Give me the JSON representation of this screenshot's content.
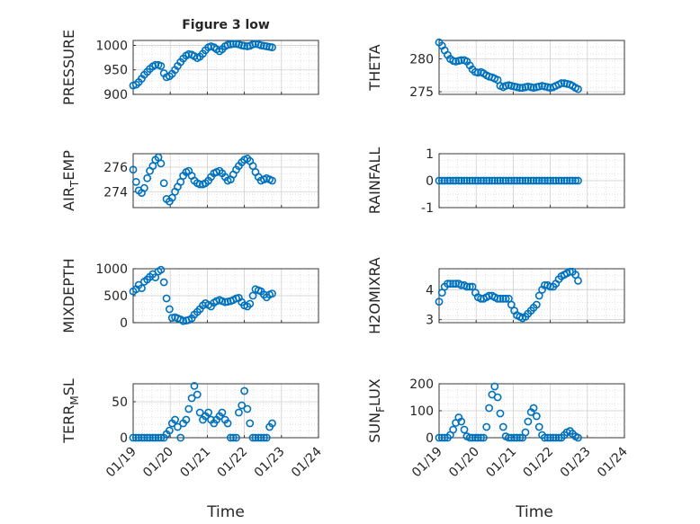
{
  "figure": {
    "title": "Figure 3 low",
    "xlabel": "Time",
    "x_ticks": [
      "01/19",
      "01/20",
      "01/21",
      "01/22",
      "01/23",
      "01/24"
    ]
  },
  "colors": {
    "marker": "#0072BD",
    "axis": "#262626",
    "grid": "#d9d9d9"
  },
  "chart_data": [
    {
      "type": "scatter",
      "name": "pressure",
      "ylabel": "PRESSURE",
      "ylim": [
        900,
        1010
      ],
      "yticks": [
        900,
        950,
        1000
      ],
      "x": [
        0.0,
        0.08,
        0.15,
        0.23,
        0.3,
        0.38,
        0.45,
        0.53,
        0.6,
        0.68,
        0.75,
        0.83,
        0.9,
        0.98,
        1.05,
        1.13,
        1.2,
        1.28,
        1.35,
        1.43,
        1.5,
        1.58,
        1.65,
        1.73,
        1.8,
        1.88,
        1.95,
        2.03,
        2.1,
        2.18,
        2.25,
        2.33,
        2.4,
        2.48,
        2.55,
        2.63,
        2.7,
        2.78,
        2.85,
        2.93,
        3.0,
        3.08,
        3.15,
        3.23,
        3.3,
        3.38,
        3.45,
        3.53,
        3.6,
        3.68,
        3.75
      ],
      "y": [
        918,
        920,
        925,
        932,
        940,
        946,
        952,
        957,
        960,
        960,
        958,
        943,
        935,
        937,
        942,
        950,
        958,
        966,
        973,
        979,
        982,
        981,
        978,
        974,
        977,
        983,
        990,
        996,
        998,
        996,
        992,
        988,
        992,
        998,
        1001,
        1002,
        1003,
        1003,
        1002,
        1000,
        999,
        998,
        999,
        1002,
        1003,
        1002,
        1000,
        999,
        998,
        997,
        996
      ]
    },
    {
      "type": "scatter",
      "name": "theta",
      "ylabel": "THETA",
      "ylim": [
        274.6,
        282.8
      ],
      "yticks": [
        275,
        280
      ],
      "x": [
        0.0,
        0.08,
        0.15,
        0.23,
        0.3,
        0.38,
        0.45,
        0.53,
        0.6,
        0.68,
        0.75,
        0.83,
        0.9,
        0.98,
        1.05,
        1.13,
        1.2,
        1.28,
        1.35,
        1.43,
        1.5,
        1.58,
        1.65,
        1.73,
        1.8,
        1.88,
        1.95,
        2.03,
        2.1,
        2.18,
        2.25,
        2.33,
        2.4,
        2.48,
        2.55,
        2.63,
        2.7,
        2.78,
        2.85,
        2.93,
        3.0,
        3.08,
        3.15,
        3.23,
        3.3,
        3.38,
        3.45,
        3.53,
        3.6,
        3.68,
        3.75
      ],
      "y": [
        282.5,
        282.0,
        281.3,
        280.6,
        280.0,
        279.7,
        279.6,
        279.7,
        279.8,
        279.8,
        279.6,
        279.0,
        278.4,
        278.0,
        277.9,
        278.0,
        277.8,
        277.5,
        277.3,
        277.2,
        277.0,
        276.8,
        275.9,
        275.7,
        275.9,
        276.0,
        275.9,
        275.8,
        275.7,
        275.6,
        275.6,
        275.7,
        275.8,
        275.7,
        275.6,
        275.7,
        275.8,
        275.9,
        275.8,
        275.7,
        275.6,
        275.7,
        275.9,
        276.1,
        276.3,
        276.3,
        276.2,
        276.1,
        275.9,
        275.6,
        275.4
      ]
    },
    {
      "type": "scatter",
      "name": "air_temp",
      "ylabel": "AIR_TEMP",
      "ylim": [
        272.7,
        277.1
      ],
      "yticks": [
        274,
        276
      ],
      "x": [
        0.0,
        0.08,
        0.15,
        0.23,
        0.3,
        0.38,
        0.45,
        0.53,
        0.6,
        0.68,
        0.75,
        0.83,
        0.9,
        0.98,
        1.05,
        1.13,
        1.2,
        1.28,
        1.35,
        1.43,
        1.5,
        1.58,
        1.65,
        1.73,
        1.8,
        1.88,
        1.95,
        2.03,
        2.1,
        2.18,
        2.25,
        2.33,
        2.4,
        2.48,
        2.55,
        2.63,
        2.7,
        2.78,
        2.85,
        2.93,
        3.0,
        3.08,
        3.15,
        3.23,
        3.3,
        3.38,
        3.45,
        3.53,
        3.6,
        3.68,
        3.75
      ],
      "y": [
        275.8,
        274.8,
        274.1,
        273.9,
        274.3,
        275.1,
        275.7,
        276.1,
        276.6,
        276.8,
        276.3,
        274.7,
        273.4,
        273.2,
        273.5,
        274.0,
        274.4,
        274.8,
        275.3,
        275.6,
        275.7,
        275.3,
        274.9,
        274.7,
        274.6,
        274.6,
        274.7,
        274.9,
        275.2,
        275.5,
        275.6,
        275.7,
        275.5,
        275.2,
        274.9,
        275.0,
        275.4,
        275.8,
        276.1,
        276.4,
        276.6,
        276.7,
        276.5,
        276.1,
        275.6,
        275.2,
        274.9,
        275.0,
        275.1,
        275.0,
        274.9
      ]
    },
    {
      "type": "scatter",
      "name": "rainfall",
      "ylabel": "RAINFALL",
      "ylim": [
        -1,
        1
      ],
      "yticks": [
        -1,
        0,
        1
      ],
      "x": [
        0.0,
        0.08,
        0.15,
        0.23,
        0.3,
        0.38,
        0.45,
        0.53,
        0.6,
        0.68,
        0.75,
        0.83,
        0.9,
        0.98,
        1.05,
        1.13,
        1.2,
        1.28,
        1.35,
        1.43,
        1.5,
        1.58,
        1.65,
        1.73,
        1.8,
        1.88,
        1.95,
        2.03,
        2.1,
        2.18,
        2.25,
        2.33,
        2.4,
        2.48,
        2.55,
        2.63,
        2.7,
        2.78,
        2.85,
        2.93,
        3.0,
        3.08,
        3.15,
        3.23,
        3.3,
        3.38,
        3.45,
        3.53,
        3.6,
        3.68,
        3.75
      ],
      "y": [
        0,
        0,
        0,
        0,
        0,
        0,
        0,
        0,
        0,
        0,
        0,
        0,
        0,
        0,
        0,
        0,
        0,
        0,
        0,
        0,
        0,
        0,
        0,
        0,
        0,
        0,
        0,
        0,
        0,
        0,
        0,
        0,
        0,
        0,
        0,
        0,
        0,
        0,
        0,
        0,
        0,
        0,
        0,
        0,
        0,
        0,
        0,
        0,
        0,
        0,
        0
      ]
    },
    {
      "type": "scatter",
      "name": "mixdepth",
      "ylabel": "MIXDEPTH",
      "ylim": [
        0,
        1000
      ],
      "yticks": [
        0,
        500,
        1000
      ],
      "x": [
        0.0,
        0.08,
        0.15,
        0.23,
        0.3,
        0.38,
        0.45,
        0.53,
        0.6,
        0.68,
        0.75,
        0.83,
        0.9,
        0.98,
        1.05,
        1.13,
        1.2,
        1.28,
        1.35,
        1.43,
        1.5,
        1.58,
        1.65,
        1.73,
        1.8,
        1.88,
        1.95,
        2.03,
        2.1,
        2.18,
        2.25,
        2.33,
        2.4,
        2.48,
        2.55,
        2.63,
        2.7,
        2.78,
        2.85,
        2.93,
        3.0,
        3.08,
        3.15,
        3.23,
        3.3,
        3.38,
        3.45,
        3.53,
        3.6,
        3.68,
        3.75
      ],
      "y": [
        580,
        620,
        700,
        640,
        760,
        800,
        850,
        900,
        840,
        950,
        980,
        750,
        450,
        250,
        90,
        100,
        80,
        60,
        30,
        40,
        50,
        80,
        150,
        200,
        250,
        320,
        360,
        330,
        300,
        370,
        400,
        420,
        400,
        380,
        390,
        400,
        420,
        450,
        460,
        380,
        320,
        300,
        350,
        500,
        620,
        600,
        580,
        520,
        470,
        520,
        540
      ]
    },
    {
      "type": "scatter",
      "name": "h2omixra",
      "ylabel": "H2OMIXRA",
      "ylim": [
        2.9,
        4.7
      ],
      "yticks": [
        3,
        4
      ],
      "x": [
        0.0,
        0.08,
        0.15,
        0.23,
        0.3,
        0.38,
        0.45,
        0.53,
        0.6,
        0.68,
        0.75,
        0.83,
        0.9,
        0.98,
        1.05,
        1.13,
        1.2,
        1.28,
        1.35,
        1.43,
        1.5,
        1.58,
        1.65,
        1.73,
        1.8,
        1.88,
        1.95,
        2.03,
        2.1,
        2.18,
        2.25,
        2.33,
        2.4,
        2.48,
        2.55,
        2.63,
        2.7,
        2.78,
        2.85,
        2.93,
        3.0,
        3.08,
        3.15,
        3.23,
        3.3,
        3.38,
        3.45,
        3.53,
        3.6,
        3.68,
        3.75
      ],
      "y": [
        3.6,
        3.9,
        4.1,
        4.2,
        4.2,
        4.2,
        4.2,
        4.2,
        4.15,
        4.15,
        4.1,
        4.1,
        4.1,
        3.9,
        3.75,
        3.7,
        3.7,
        3.75,
        3.8,
        3.8,
        3.75,
        3.7,
        3.7,
        3.7,
        3.7,
        3.7,
        3.5,
        3.3,
        3.15,
        3.1,
        3.05,
        3.1,
        3.2,
        3.3,
        3.4,
        3.5,
        3.8,
        4.0,
        4.15,
        4.15,
        4.1,
        4.1,
        4.2,
        4.35,
        4.45,
        4.5,
        4.55,
        4.6,
        4.6,
        4.5,
        4.3
      ]
    },
    {
      "type": "scatter",
      "name": "terr_msl",
      "ylabel": "TERR_MSL",
      "ylim": [
        0,
        75
      ],
      "yticks": [
        0,
        50
      ],
      "x": [
        0.0,
        0.08,
        0.15,
        0.23,
        0.3,
        0.38,
        0.45,
        0.53,
        0.6,
        0.68,
        0.75,
        0.83,
        0.9,
        0.98,
        1.05,
        1.13,
        1.2,
        1.28,
        1.35,
        1.43,
        1.5,
        1.58,
        1.65,
        1.73,
        1.8,
        1.88,
        1.95,
        2.03,
        2.1,
        2.18,
        2.25,
        2.33,
        2.4,
        2.48,
        2.55,
        2.63,
        2.7,
        2.78,
        2.85,
        2.93,
        3.0,
        3.08,
        3.15,
        3.23,
        3.3,
        3.38,
        3.45,
        3.53,
        3.6,
        3.68,
        3.75
      ],
      "y": [
        0,
        0,
        0,
        0,
        0,
        0,
        0,
        0,
        0,
        0,
        0,
        0,
        5,
        10,
        20,
        25,
        15,
        0,
        20,
        25,
        40,
        55,
        72,
        60,
        35,
        25,
        30,
        35,
        25,
        20,
        25,
        30,
        35,
        25,
        20,
        0,
        0,
        0,
        35,
        45,
        65,
        40,
        20,
        0,
        0,
        0,
        0,
        0,
        0,
        15,
        20
      ]
    },
    {
      "type": "scatter",
      "name": "sun_flux",
      "ylabel": "SUN_FLUX",
      "ylim": [
        0,
        200
      ],
      "yticks": [
        0,
        100,
        200
      ],
      "x": [
        0.0,
        0.08,
        0.15,
        0.23,
        0.3,
        0.38,
        0.45,
        0.53,
        0.6,
        0.68,
        0.75,
        0.83,
        0.9,
        0.98,
        1.05,
        1.13,
        1.2,
        1.28,
        1.35,
        1.43,
        1.5,
        1.58,
        1.65,
        1.73,
        1.8,
        1.88,
        1.95,
        2.03,
        2.1,
        2.18,
        2.25,
        2.33,
        2.4,
        2.48,
        2.55,
        2.63,
        2.7,
        2.78,
        2.85,
        2.93,
        3.0,
        3.08,
        3.15,
        3.23,
        3.3,
        3.38,
        3.45,
        3.53,
        3.6,
        3.68,
        3.75
      ],
      "y": [
        0,
        0,
        0,
        0,
        10,
        30,
        55,
        75,
        60,
        30,
        5,
        0,
        0,
        0,
        0,
        0,
        0,
        40,
        110,
        160,
        190,
        150,
        90,
        40,
        5,
        0,
        0,
        0,
        0,
        0,
        0,
        20,
        60,
        95,
        110,
        80,
        40,
        10,
        0,
        0,
        0,
        0,
        0,
        0,
        0,
        10,
        20,
        25,
        15,
        5,
        0
      ]
    }
  ]
}
